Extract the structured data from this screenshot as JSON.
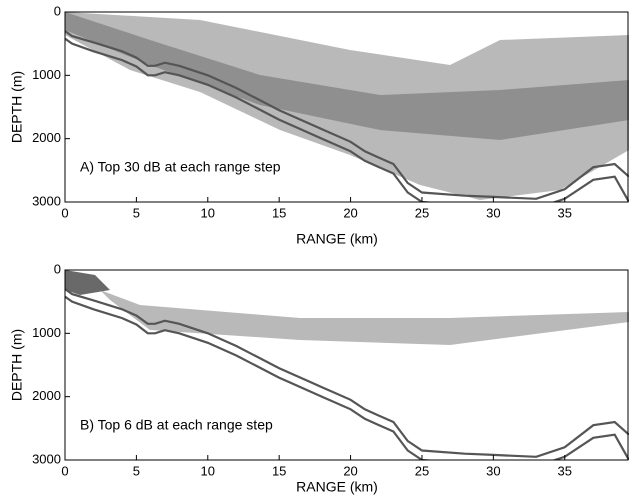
{
  "chart_data": [
    {
      "type": "line",
      "annotation": "A) Top 30 dB at each range step",
      "xlabel": "RANGE (km)",
      "ylabel": "DEPTH (m)",
      "xlim": [
        0,
        39.5
      ],
      "ylim": [
        3000,
        0
      ],
      "xticks": [
        0,
        5,
        10,
        15,
        20,
        25,
        30,
        35
      ],
      "yticks": [
        0,
        1000,
        2000,
        3000
      ],
      "x": [
        0,
        0.5,
        2,
        4,
        5,
        5.8,
        6.3,
        7,
        8,
        10,
        12,
        15,
        18,
        20,
        21,
        22,
        23,
        24,
        25,
        28,
        30,
        33,
        35,
        37,
        38.5,
        39.5
      ],
      "series": [
        {
          "color": "#555555",
          "values": [
            300,
            380,
            480,
            620,
            720,
            850,
            850,
            800,
            850,
            1000,
            1200,
            1550,
            1850,
            2050,
            2200,
            2300,
            2400,
            2700,
            2850,
            2900,
            2920,
            2950,
            2800,
            2450,
            2400,
            2600
          ]
        },
        {
          "color": "#555555",
          "values": [
            420,
            500,
            620,
            760,
            860,
            1000,
            1000,
            950,
            1000,
            1150,
            1350,
            1700,
            2000,
            2200,
            2350,
            2450,
            2550,
            2850,
            3000,
            3050,
            3070,
            3100,
            2950,
            2650,
            2600,
            3000
          ]
        }
      ]
    },
    {
      "type": "line",
      "annotation": "B) Top 6 dB at each range step",
      "xlabel": "RANGE (km)",
      "ylabel": "DEPTH (m)",
      "xlim": [
        0,
        39.5
      ],
      "ylim": [
        3000,
        0
      ],
      "xticks": [
        0,
        5,
        10,
        15,
        20,
        25,
        30,
        35
      ],
      "yticks": [
        0,
        1000,
        2000,
        3000
      ],
      "x": [
        0,
        0.5,
        2,
        4,
        5,
        5.8,
        6.3,
        7,
        8,
        10,
        12,
        15,
        18,
        20,
        21,
        22,
        23,
        24,
        25,
        28,
        30,
        33,
        35,
        37,
        38.5,
        39.5
      ],
      "series": [
        {
          "color": "#555555",
          "values": [
            300,
            380,
            480,
            620,
            720,
            850,
            850,
            800,
            850,
            1000,
            1200,
            1550,
            1850,
            2050,
            2200,
            2300,
            2400,
            2700,
            2850,
            2900,
            2920,
            2950,
            2800,
            2450,
            2400,
            2600
          ]
        },
        {
          "color": "#555555",
          "values": [
            420,
            500,
            620,
            760,
            860,
            1000,
            1000,
            950,
            1000,
            1150,
            1350,
            1700,
            2000,
            2200,
            2350,
            2450,
            2550,
            2850,
            3000,
            3050,
            3070,
            3100,
            2950,
            2650,
            2600,
            3000
          ]
        }
      ]
    }
  ]
}
